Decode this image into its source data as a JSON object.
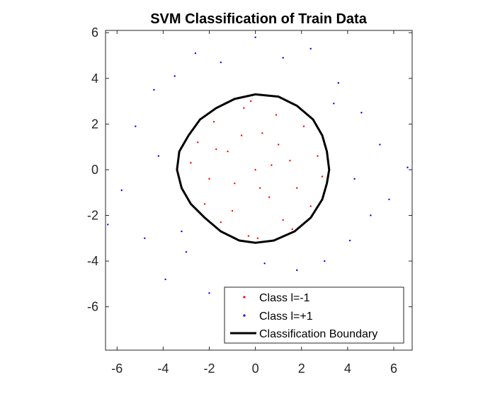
{
  "chart_data": {
    "type": "scatter",
    "title": "SVM Classification of Train Data",
    "xlim": [
      -6.5,
      6.8
    ],
    "ylim": [
      -7.9,
      6.1
    ],
    "xticks": [
      -6,
      -4,
      -2,
      0,
      2,
      4,
      6
    ],
    "yticks": [
      -6,
      -4,
      -2,
      0,
      2,
      4,
      6
    ],
    "xtick_labels": [
      "-6",
      "-4",
      "-2",
      "0",
      "2",
      "4",
      "6"
    ],
    "ytick_labels": [
      "-6",
      "-4",
      "-2",
      "0",
      "2",
      "4",
      "6"
    ],
    "grid": false,
    "legend_position": "bottom-right",
    "series": [
      {
        "name": "Class l=-1",
        "color": "#ff0000",
        "marker": "dot",
        "distribution": "points inside radius ~3.2",
        "points": [
          [
            -2.8,
            0.3
          ],
          [
            -2.5,
            1.2
          ],
          [
            -2.2,
            -1.5
          ],
          [
            -1.8,
            2.1
          ],
          [
            -1.5,
            -2.3
          ],
          [
            -1.2,
            0.8
          ],
          [
            -0.9,
            -0.6
          ],
          [
            -0.5,
            2.7
          ],
          [
            -0.3,
            -2.9
          ],
          [
            0.0,
            0.0
          ],
          [
            0.3,
            1.6
          ],
          [
            0.6,
            -1.2
          ],
          [
            0.9,
            2.4
          ],
          [
            1.2,
            -2.2
          ],
          [
            1.5,
            0.4
          ],
          [
            1.8,
            -0.8
          ],
          [
            2.1,
            1.9
          ],
          [
            2.4,
            -1.6
          ],
          [
            2.7,
            0.6
          ],
          [
            2.9,
            -0.3
          ],
          [
            -2.0,
            -0.4
          ],
          [
            -1.0,
            -1.8
          ],
          [
            0.2,
            -0.8
          ],
          [
            1.0,
            1.1
          ],
          [
            -0.6,
            1.5
          ],
          [
            0.7,
            0.2
          ],
          [
            -1.7,
            0.9
          ],
          [
            1.6,
            -2.6
          ],
          [
            -0.2,
            3.0
          ],
          [
            0.1,
            -3.0
          ]
        ]
      },
      {
        "name": "Class l=+1",
        "color": "#0000ff",
        "marker": "dot",
        "distribution": "points outside radius ~3.3",
        "points": [
          [
            -5.8,
            -0.9
          ],
          [
            -5.2,
            1.9
          ],
          [
            -4.8,
            -3.0
          ],
          [
            -4.4,
            3.5
          ],
          [
            -3.9,
            -4.8
          ],
          [
            -3.5,
            4.1
          ],
          [
            -3.0,
            -3.6
          ],
          [
            -2.6,
            5.1
          ],
          [
            -2.0,
            -5.4
          ],
          [
            -1.5,
            4.7
          ],
          [
            -0.8,
            -6.2
          ],
          [
            0.0,
            5.8
          ],
          [
            0.6,
            -5.6
          ],
          [
            1.2,
            4.9
          ],
          [
            1.8,
            -4.4
          ],
          [
            2.4,
            5.3
          ],
          [
            3.0,
            -4.0
          ],
          [
            3.6,
            3.8
          ],
          [
            4.1,
            -3.1
          ],
          [
            4.6,
            2.5
          ],
          [
            5.0,
            -2.0
          ],
          [
            5.4,
            1.1
          ],
          [
            5.8,
            -1.3
          ],
          [
            6.6,
            0.1
          ],
          [
            -6.4,
            -2.4
          ],
          [
            -3.2,
            -2.7
          ],
          [
            3.4,
            2.9
          ],
          [
            4.3,
            -0.4
          ],
          [
            -4.2,
            0.6
          ],
          [
            0.4,
            -4.1
          ]
        ]
      },
      {
        "name": "Classification Boundary",
        "color": "#000000",
        "marker": "line",
        "points": [
          [
            3.2,
            0.0
          ],
          [
            3.1,
            0.8
          ],
          [
            2.9,
            1.5
          ],
          [
            2.5,
            2.2
          ],
          [
            1.8,
            2.8
          ],
          [
            1.0,
            3.2
          ],
          [
            0.0,
            3.3
          ],
          [
            -0.9,
            3.1
          ],
          [
            -1.7,
            2.7
          ],
          [
            -2.4,
            2.2
          ],
          [
            -2.9,
            1.5
          ],
          [
            -3.3,
            0.8
          ],
          [
            -3.4,
            0.0
          ],
          [
            -3.2,
            -0.8
          ],
          [
            -2.8,
            -1.5
          ],
          [
            -2.2,
            -2.1
          ],
          [
            -1.5,
            -2.7
          ],
          [
            -0.7,
            -3.1
          ],
          [
            0.0,
            -3.2
          ],
          [
            0.8,
            -3.1
          ],
          [
            1.7,
            -2.7
          ],
          [
            2.4,
            -2.1
          ],
          [
            2.9,
            -1.3
          ],
          [
            3.1,
            -0.6
          ],
          [
            3.2,
            0.0
          ]
        ]
      }
    ]
  }
}
